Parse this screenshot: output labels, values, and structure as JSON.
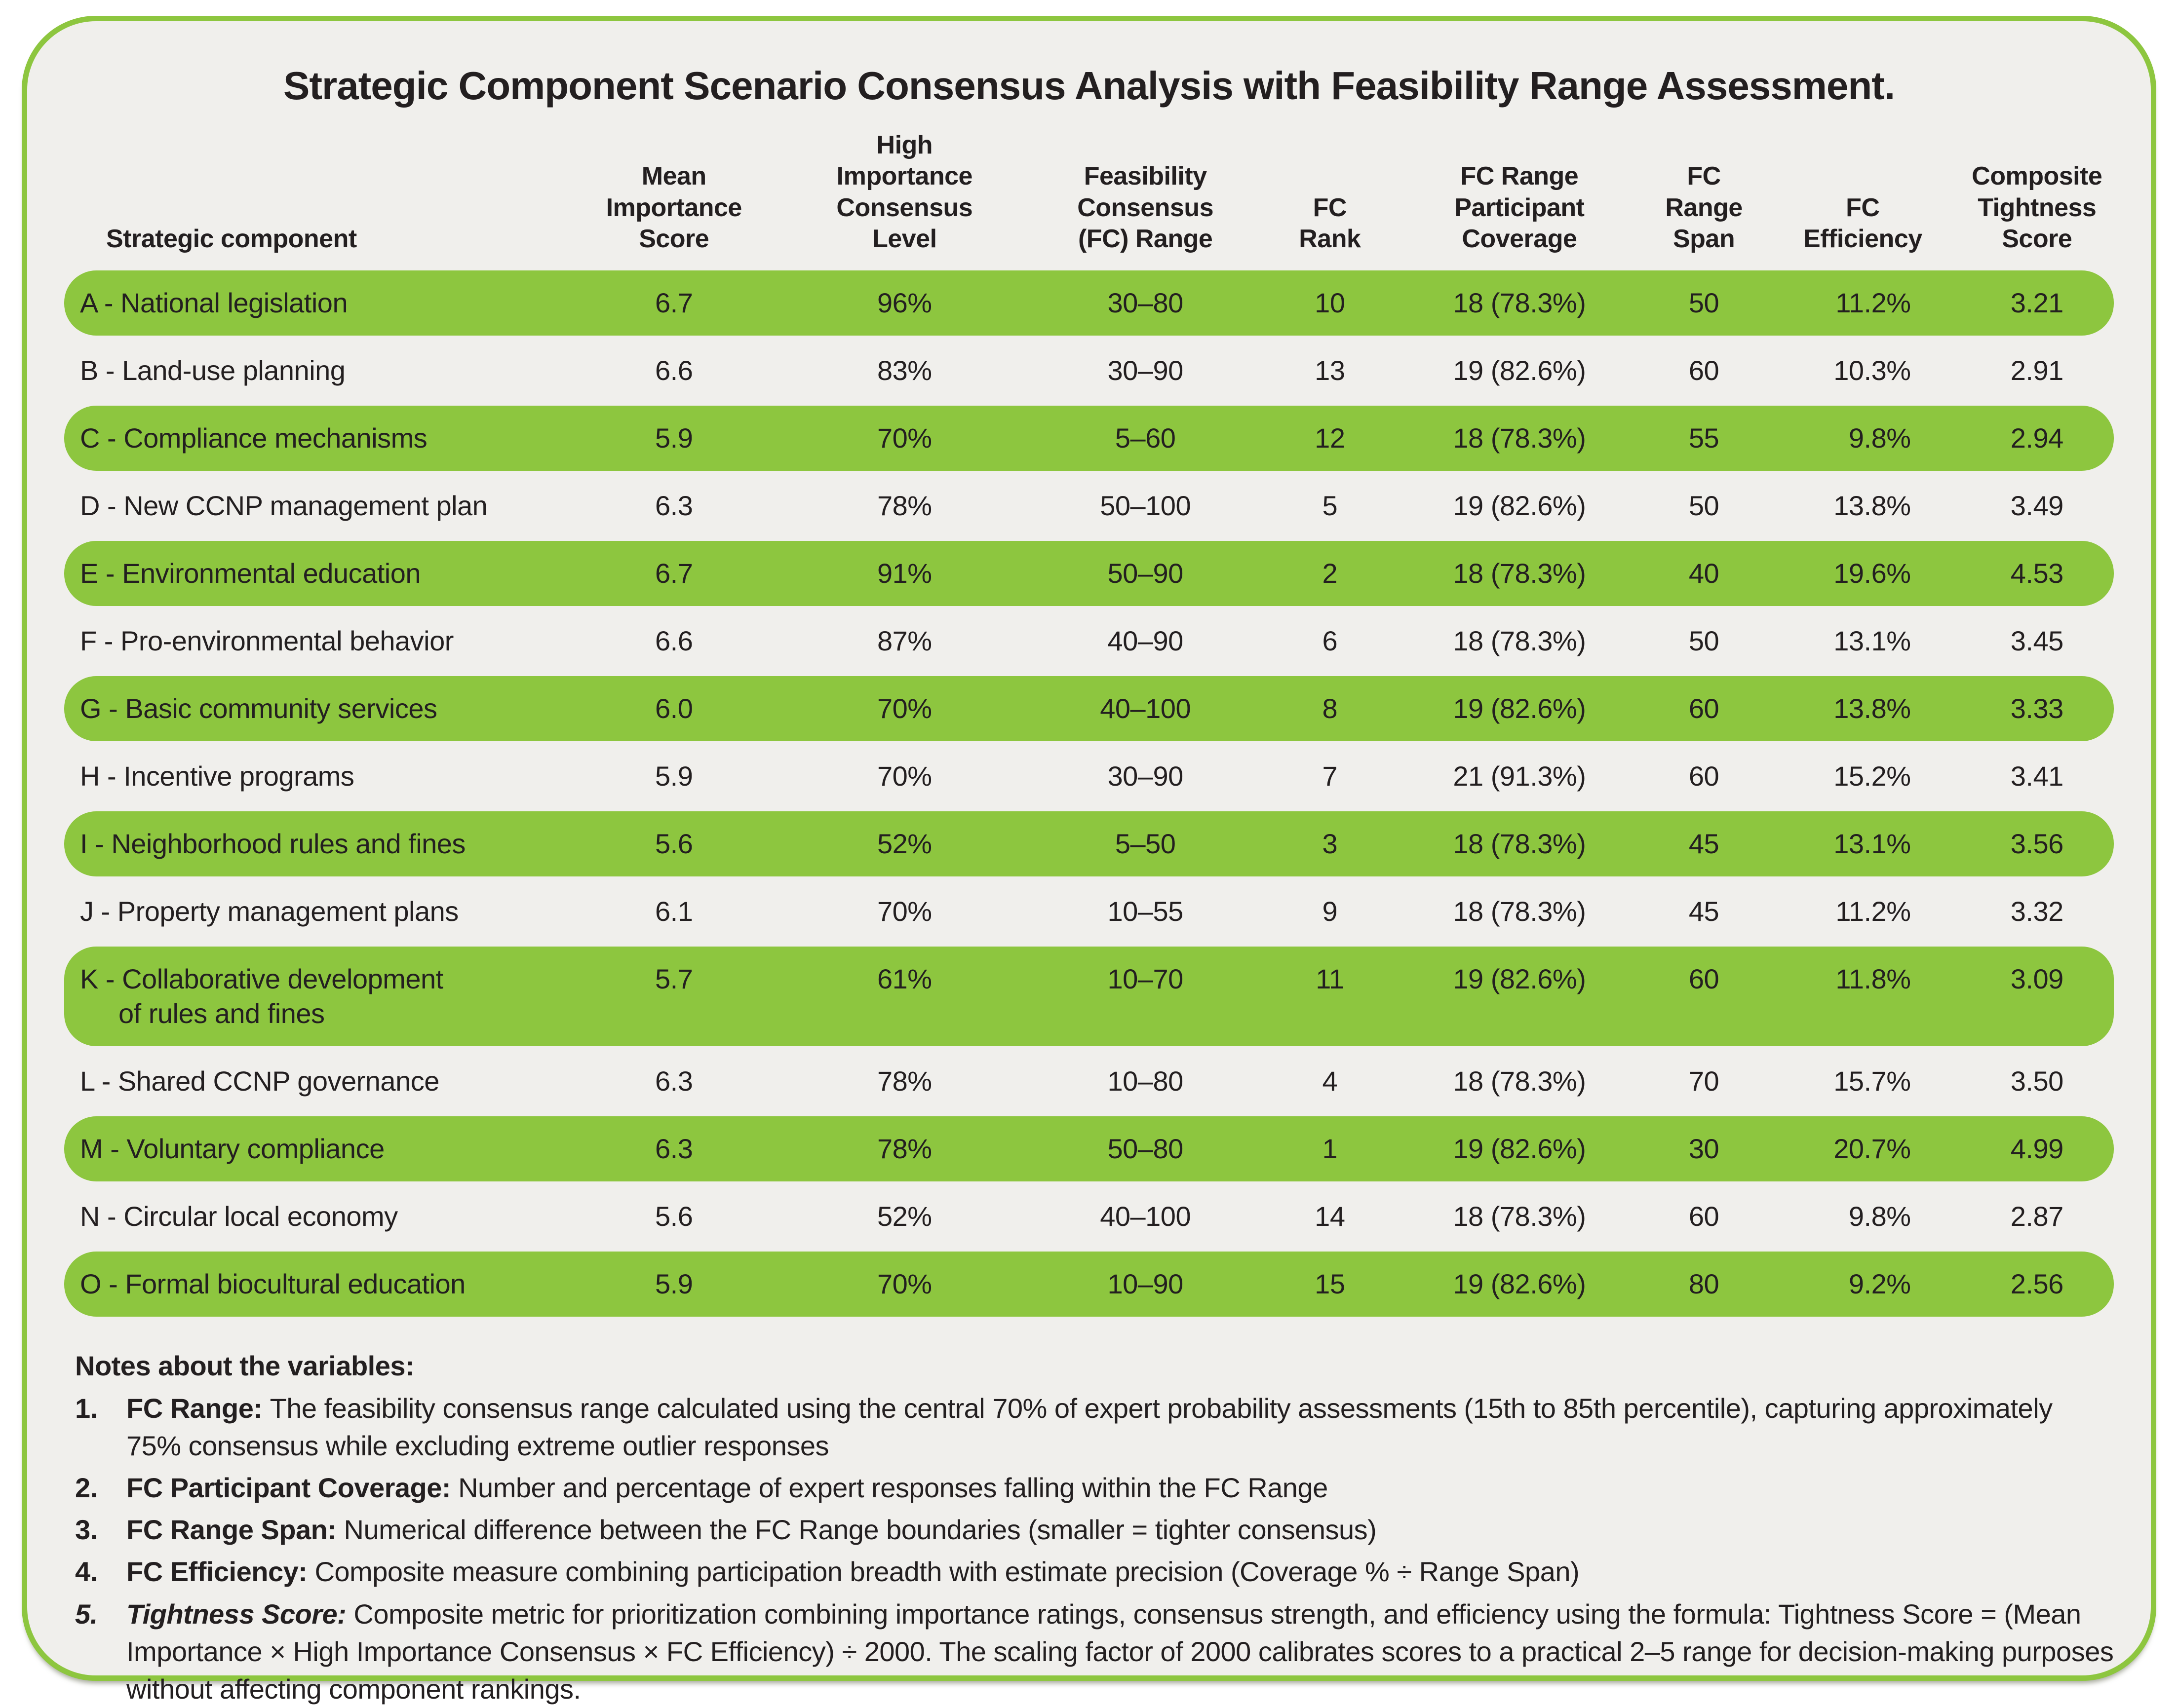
{
  "title": "Strategic Component Scenario Consensus Analysis with Feasibility Range Assessment.",
  "colors": {
    "row_highlight": "#8dc63f",
    "panel_border": "#8dc63f",
    "panel_bg": "#f0efec",
    "page_bg": "#ffffff",
    "text": "#231f20"
  },
  "table": {
    "columns": [
      {
        "key": "component",
        "label": "Strategic component"
      },
      {
        "key": "mean",
        "label": "Mean\nImportance\nScore"
      },
      {
        "key": "consensus",
        "label": "High\nImportance\nConsensus\nLevel"
      },
      {
        "key": "range",
        "label": "Feasibility\nConsensus\n(FC) Range"
      },
      {
        "key": "rank",
        "label": "FC\nRank"
      },
      {
        "key": "coverage",
        "label": "FC Range\nParticipant\nCoverage"
      },
      {
        "key": "span",
        "label": "FC\nRange\nSpan"
      },
      {
        "key": "efficiency",
        "label": "FC\nEfficiency"
      },
      {
        "key": "tightness",
        "label": "Composite\nTightness\nScore"
      }
    ],
    "rows": [
      {
        "id": "A",
        "component": "A - National legislation",
        "mean": "6.7",
        "consensus": "96%",
        "range": "30–80",
        "rank": "10",
        "coverage": "18 (78.3%)",
        "span": "50",
        "efficiency": "11.2%",
        "tightness": "3.21",
        "highlight": true
      },
      {
        "id": "B",
        "component": "B - Land-use planning",
        "mean": "6.6",
        "consensus": "83%",
        "range": "30–90",
        "rank": "13",
        "coverage": "19 (82.6%)",
        "span": "60",
        "efficiency": "10.3%",
        "tightness": "2.91",
        "highlight": false
      },
      {
        "id": "C",
        "component": "C - Compliance mechanisms",
        "mean": "5.9",
        "consensus": "70%",
        "range": "5–60",
        "rank": "12",
        "coverage": "18 (78.3%)",
        "span": "55",
        "efficiency": "9.8%",
        "tightness": "2.94",
        "highlight": true
      },
      {
        "id": "D",
        "component": "D - New CCNP management plan",
        "mean": "6.3",
        "consensus": "78%",
        "range": "50–100",
        "rank": "5",
        "coverage": "19 (82.6%)",
        "span": "50",
        "efficiency": "13.8%",
        "tightness": "3.49",
        "highlight": false
      },
      {
        "id": "E",
        "component": "E - Environmental education",
        "mean": "6.7",
        "consensus": "91%",
        "range": "50–90",
        "rank": "2",
        "coverage": "18 (78.3%)",
        "span": "40",
        "efficiency": "19.6%",
        "tightness": "4.53",
        "highlight": true
      },
      {
        "id": "F",
        "component": "F - Pro-environmental behavior",
        "mean": "6.6",
        "consensus": "87%",
        "range": "40–90",
        "rank": "6",
        "coverage": "18 (78.3%)",
        "span": "50",
        "efficiency": "13.1%",
        "tightness": "3.45",
        "highlight": false
      },
      {
        "id": "G",
        "component": "G - Basic community services",
        "mean": "6.0",
        "consensus": "70%",
        "range": "40–100",
        "rank": "8",
        "coverage": "19 (82.6%)",
        "span": "60",
        "efficiency": "13.8%",
        "tightness": "3.33",
        "highlight": true
      },
      {
        "id": "H",
        "component": "H - Incentive programs",
        "mean": "5.9",
        "consensus": "70%",
        "range": "30–90",
        "rank": "7",
        "coverage": "21 (91.3%)",
        "span": "60",
        "efficiency": "15.2%",
        "tightness": "3.41",
        "highlight": false
      },
      {
        "id": "I",
        "component": "I - Neighborhood rules and fines",
        "mean": "5.6",
        "consensus": "52%",
        "range": "5–50",
        "rank": "3",
        "coverage": "18 (78.3%)",
        "span": "45",
        "efficiency": "13.1%",
        "tightness": "3.56",
        "highlight": true
      },
      {
        "id": "J",
        "component": "J - Property management plans",
        "mean": "6.1",
        "consensus": "70%",
        "range": "10–55",
        "rank": "9",
        "coverage": "18 (78.3%)",
        "span": "45",
        "efficiency": "11.2%",
        "tightness": "3.32",
        "highlight": false
      },
      {
        "id": "K",
        "component": "K - Collaborative development",
        "component2": "of rules and fines",
        "mean": "5.7",
        "consensus": "61%",
        "range": "10–70",
        "rank": "11",
        "coverage": "19 (82.6%)",
        "span": "60",
        "efficiency": "11.8%",
        "tightness": "3.09",
        "highlight": true
      },
      {
        "id": "L",
        "component": "L - Shared CCNP governance",
        "mean": "6.3",
        "consensus": "78%",
        "range": "10–80",
        "rank": "4",
        "coverage": "18 (78.3%)",
        "span": "70",
        "efficiency": "15.7%",
        "tightness": "3.50",
        "highlight": false
      },
      {
        "id": "M",
        "component": "M - Voluntary compliance",
        "mean": "6.3",
        "consensus": "78%",
        "range": "50–80",
        "rank": "1",
        "coverage": "19 (82.6%)",
        "span": "30",
        "efficiency": "20.7%",
        "tightness": "4.99",
        "highlight": true
      },
      {
        "id": "N",
        "component": "N - Circular local economy",
        "mean": "5.6",
        "consensus": "52%",
        "range": "40–100",
        "rank": "14",
        "coverage": "18 (78.3%)",
        "span": "60",
        "efficiency": "9.8%",
        "tightness": "2.87",
        "highlight": false
      },
      {
        "id": "O",
        "component": "O - Formal biocultural education",
        "mean": "5.9",
        "consensus": "70%",
        "range": "10–90",
        "rank": "15",
        "coverage": "19 (82.6%)",
        "span": "80",
        "efficiency": "9.2%",
        "tightness": "2.56",
        "highlight": true
      }
    ]
  },
  "notes": {
    "heading": "Notes about the variables:",
    "items": [
      {
        "num": "1.",
        "term": "FC Range:",
        "text": "The feasibility consensus range calculated using the central 70% of expert probability assessments (15th to 85th percentile), capturing approximately 75% consensus while excluding extreme outlier responses",
        "italic": false
      },
      {
        "num": "2.",
        "term": "FC Participant Coverage:",
        "text": "Number and percentage of expert responses falling within the FC Range",
        "italic": false
      },
      {
        "num": "3.",
        "term": "FC Range Span:",
        "text": "Numerical difference between the FC Range boundaries (smaller = tighter consensus)",
        "italic": false
      },
      {
        "num": "4.",
        "term": "FC Efficiency:",
        "text": "Composite measure combining participation breadth with estimate precision (Coverage % ÷ Range Span)",
        "italic": false
      },
      {
        "num": "5.",
        "term": "Tightness Score:",
        "text": "Composite metric for prioritization combining importance ratings, consensus strength, and efficiency using the formula: Tightness Score = (Mean Importance × High Importance Consensus × FC Efficiency) ÷ 2000. The scaling factor of 2000 calibrates scores to a practical 2–5 range for decision-making purposes without affecting component rankings.",
        "italic": true
      }
    ]
  }
}
